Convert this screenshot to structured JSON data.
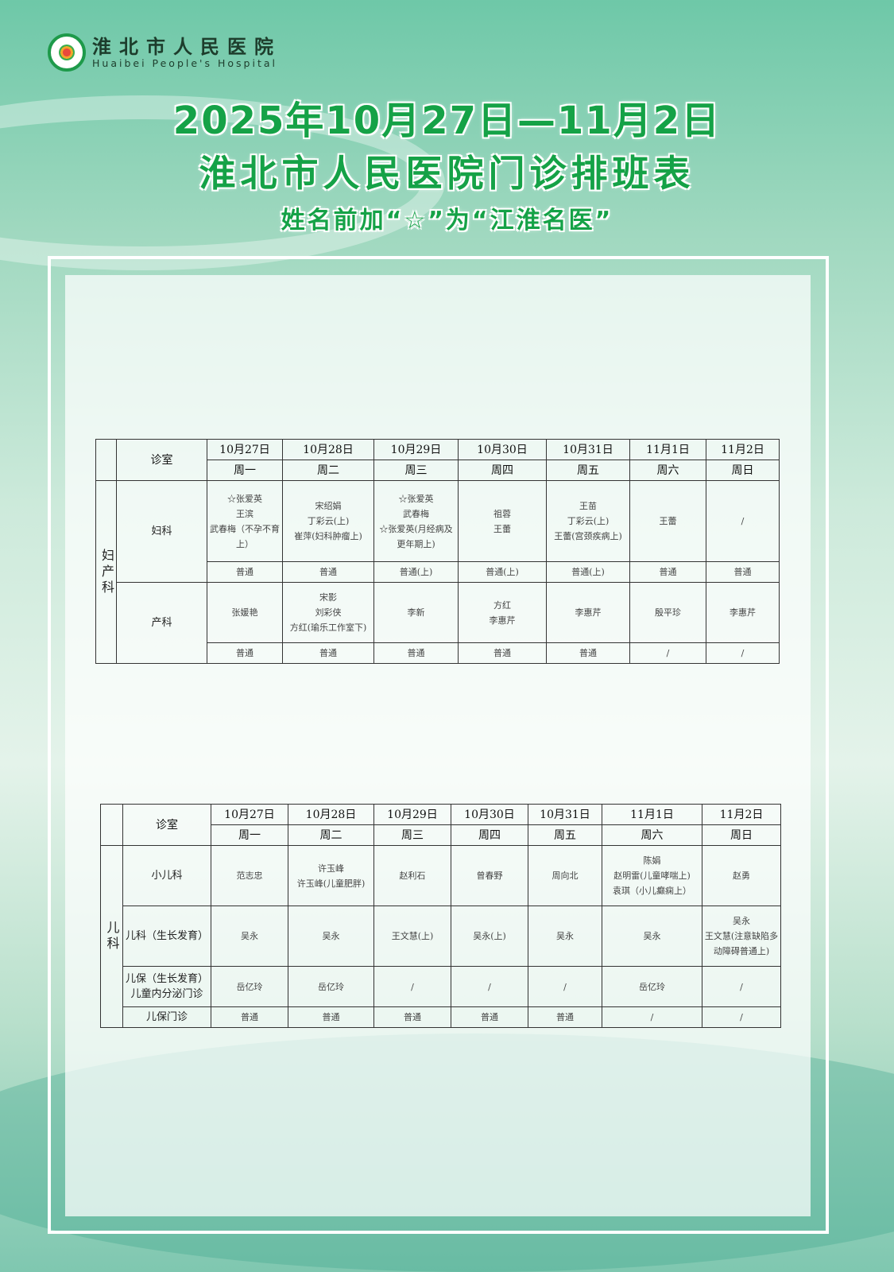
{
  "logo": {
    "name_cn": "淮北市人民医院",
    "name_en": "Huaibei People's Hospital"
  },
  "title": {
    "line1": "2025年10月27日—11月2日",
    "line2": "淮北市人民医院门诊排班表",
    "subtitle": "姓名前加“☆”为“江淮名医”"
  },
  "colors": {
    "title": "#15a247",
    "frame": "#ffffff"
  },
  "table1": {
    "room_header": "诊室",
    "dates": [
      "10月27日",
      "10月28日",
      "10月29日",
      "10月30日",
      "10月31日",
      "11月1日",
      "11月2日"
    ],
    "weekdays": [
      "周一",
      "周二",
      "周三",
      "周四",
      "周五",
      "周六",
      "周日"
    ],
    "department": "妇产科",
    "rows": [
      {
        "room": "妇科",
        "experts": [
          [
            "☆张爱英",
            "王滨",
            "武春梅（不孕不育上）"
          ],
          [
            "宋绍娟",
            "丁彩云(上)",
            "崔萍(妇科肿瘤上)"
          ],
          [
            "☆张爱英",
            "武春梅",
            "☆张爱英(月经病及更年期上)"
          ],
          [
            "祖蓉",
            "王蕾"
          ],
          [
            "王苗",
            "丁彩云(上)",
            "王蕾(宫颈疾病上)"
          ],
          [
            "王蕾"
          ],
          [
            "/"
          ]
        ],
        "general": [
          "普通",
          "普通",
          "普通(上)",
          "普通(上)",
          "普通(上)",
          "普通",
          "普通"
        ]
      },
      {
        "room": "产科",
        "experts": [
          [
            "张媛艳"
          ],
          [
            "宋影",
            "刘彩侠",
            "方红(瑜乐工作室下)"
          ],
          [
            "李新"
          ],
          [
            "方红",
            "李惠芹"
          ],
          [
            "李惠芹"
          ],
          [
            "殷平珍"
          ],
          [
            "李惠芹"
          ]
        ],
        "general": [
          "普通",
          "普通",
          "普通",
          "普通",
          "普通",
          "/",
          "/"
        ]
      }
    ]
  },
  "table2": {
    "room_header": "诊室",
    "dates": [
      "10月27日",
      "10月28日",
      "10月29日",
      "10月30日",
      "10月31日",
      "11月1日",
      "11月2日"
    ],
    "weekdays": [
      "周一",
      "周二",
      "周三",
      "周四",
      "周五",
      "周六",
      "周日"
    ],
    "department": "儿科",
    "rows": [
      {
        "room": "小儿科",
        "cells": [
          [
            "范志忠"
          ],
          [
            "许玉峰",
            "许玉峰(儿童肥胖)"
          ],
          [
            "赵利石"
          ],
          [
            "曾春野"
          ],
          [
            "周向北"
          ],
          [
            "陈娟",
            "赵明雷(儿童哮喘上)",
            "袁琪（小儿癫痫上）"
          ],
          [
            "赵勇"
          ]
        ]
      },
      {
        "room": "儿科（生长发育）",
        "cells": [
          [
            "吴永"
          ],
          [
            "吴永"
          ],
          [
            "王文慧(上)"
          ],
          [
            "吴永(上)"
          ],
          [
            "吴永"
          ],
          [
            "吴永"
          ],
          [
            "吴永",
            "王文慧(注意缺陷多动障碍普通上)"
          ]
        ]
      },
      {
        "room": "儿保（生长发育）儿童内分泌门诊",
        "cells": [
          [
            "岳亿玲"
          ],
          [
            "岳亿玲"
          ],
          [
            "/"
          ],
          [
            "/"
          ],
          [
            "/"
          ],
          [
            "岳亿玲"
          ],
          [
            "/"
          ]
        ]
      },
      {
        "room": "儿保门诊",
        "cells": [
          [
            "普通"
          ],
          [
            "普通"
          ],
          [
            "普通"
          ],
          [
            "普通"
          ],
          [
            "普通"
          ],
          [
            "/"
          ],
          [
            "/"
          ]
        ]
      }
    ]
  }
}
